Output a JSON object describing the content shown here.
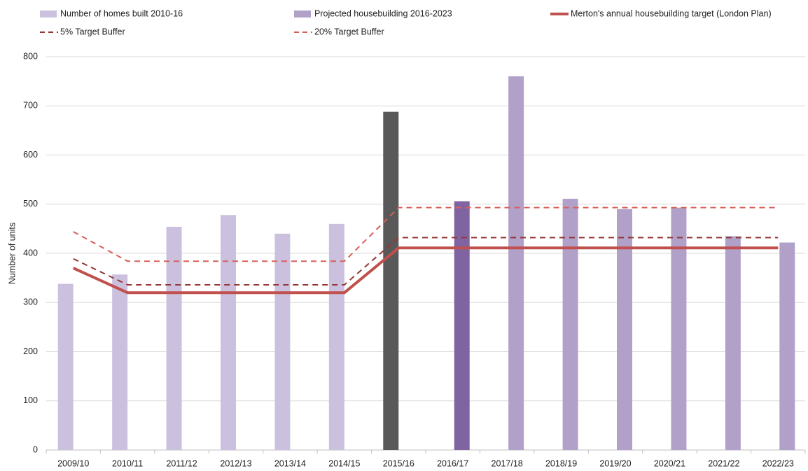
{
  "chart_data": {
    "type": "bar",
    "y_label": "Number of units",
    "categories": [
      "2009/10",
      "2010/11",
      "2011/12",
      "2012/13",
      "2013/14",
      "2014/15",
      "2015/16",
      "2016/17",
      "2017/18",
      "2018/19",
      "2019/20",
      "2020/21",
      "2021/22",
      "2022/23"
    ],
    "series": [
      {
        "name": "Number of homes built 2010-16",
        "type": "bar",
        "color": "#cbc1de",
        "values": [
          338,
          357,
          454,
          478,
          440,
          460,
          688,
          null,
          null,
          null,
          null,
          null,
          null,
          null
        ],
        "colors": [
          null,
          null,
          null,
          null,
          null,
          null,
          "#595959",
          null,
          null,
          null,
          null,
          null,
          null,
          null
        ]
      },
      {
        "name": "Projected housebuilding  2016-2023",
        "type": "bar",
        "color": "#b1a1c9",
        "values": [
          null,
          null,
          null,
          null,
          null,
          null,
          null,
          506,
          760,
          511,
          490,
          493,
          435,
          422
        ],
        "colors": [
          null,
          null,
          null,
          null,
          null,
          null,
          null,
          "#8064a2",
          null,
          null,
          null,
          null,
          null,
          null
        ]
      },
      {
        "name": "Merton's annual housebuilding target (London Plan)",
        "type": "line",
        "color": "#c0504d",
        "dashed": false,
        "values": [
          370,
          320,
          320,
          320,
          320,
          320,
          411,
          411,
          411,
          411,
          411,
          411,
          411,
          411
        ]
      },
      {
        "name": "5% Target Buffer",
        "type": "line",
        "color": "#953735",
        "dashed": true,
        "values": [
          389,
          336,
          336,
          336,
          336,
          336,
          432,
          432,
          432,
          432,
          432,
          432,
          432,
          432
        ]
      },
      {
        "name": "20% Target Buffer",
        "type": "line",
        "color": "#d9605a",
        "dashed": true,
        "values": [
          444,
          384,
          384,
          384,
          384,
          384,
          493,
          493,
          493,
          493,
          493,
          493,
          493,
          493
        ]
      }
    ],
    "ylim": [
      0,
      800
    ],
    "yticks": [
      0,
      100,
      200,
      300,
      400,
      500,
      600,
      700,
      800
    ],
    "grid": true
  }
}
